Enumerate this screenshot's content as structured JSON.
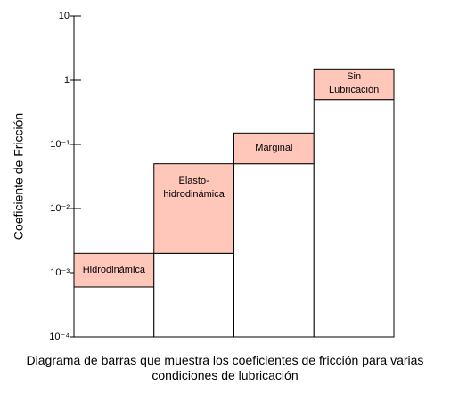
{
  "chart_data": {
    "type": "range_bar",
    "y_label": "Coeficiente de Fricción",
    "caption": "Diagrama de barras que muestra los coeficientes de fricción para varias\ncondiciones de lubricación",
    "categories": [
      "Hidrodinámica",
      "Elasto-\nhidrodinámica",
      "Marginal",
      "Sin\nLubricación"
    ],
    "low": [
      0.0006,
      0.002,
      0.05,
      0.5
    ],
    "high": [
      0.002,
      0.05,
      0.15,
      1.5
    ],
    "color": "#ffc6ba",
    "base_color": "#ffffff",
    "log_y": true,
    "ylim": [
      0.0001,
      10
    ],
    "yticks": [
      {
        "value": 0.0001,
        "label": "10⁻⁴"
      },
      {
        "value": 0.001,
        "label": "10⁻³"
      },
      {
        "value": 0.01,
        "label": "10⁻²"
      },
      {
        "value": 0.1,
        "label": "10⁻¹"
      },
      1,
      10
    ]
  }
}
